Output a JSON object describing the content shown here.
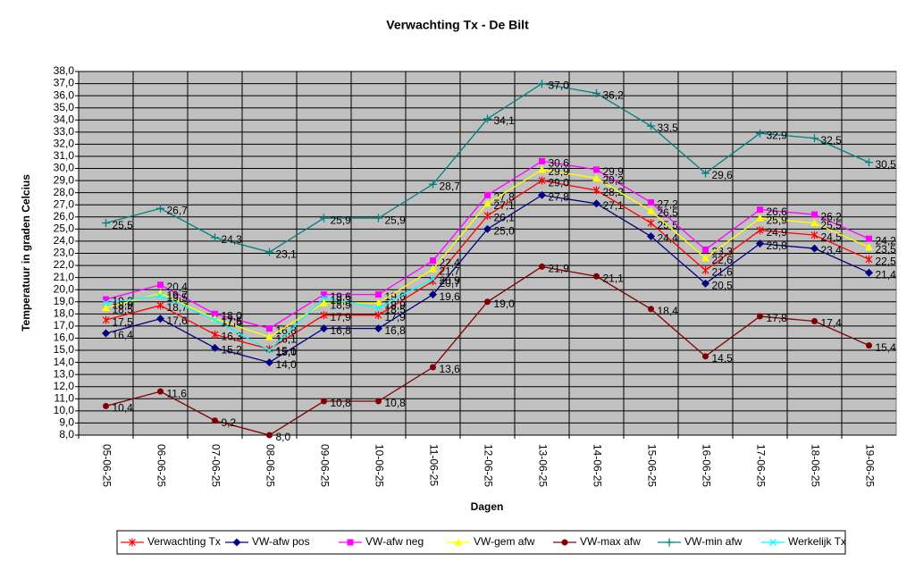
{
  "chart_data": {
    "type": "line",
    "title": "Verwachting Tx - De Bilt",
    "x_label": "Dagen",
    "y_label": "Temperatuur in graden Celcius",
    "categories": [
      "05-06-25",
      "06-06-25",
      "07-06-25",
      "08-06-25",
      "09-06-25",
      "10-06-25",
      "11-06-25",
      "12-06-25",
      "13-06-25",
      "14-06-25",
      "15-06-25",
      "16-06-25",
      "17-06-25",
      "18-06-25",
      "19-06-25"
    ],
    "ylim": [
      8,
      38
    ],
    "yticks": [
      {
        "value": 8,
        "label": "8,0"
      },
      {
        "value": 9,
        "label": "9,0"
      },
      {
        "value": 10,
        "label": "10,0"
      },
      {
        "value": 11,
        "label": "11,0"
      },
      {
        "value": 12,
        "label": "12,0"
      },
      {
        "value": 13,
        "label": "13,0"
      },
      {
        "value": 14,
        "label": "14,0"
      },
      {
        "value": 15,
        "label": "15,0"
      },
      {
        "value": 16,
        "label": "16,0"
      },
      {
        "value": 17,
        "label": "17,0"
      },
      {
        "value": 18,
        "label": "18,0"
      },
      {
        "value": 19,
        "label": "19,0"
      },
      {
        "value": 20,
        "label": "20,0"
      },
      {
        "value": 21,
        "label": "21,0"
      },
      {
        "value": 22,
        "label": "22,0"
      },
      {
        "value": 23,
        "label": "23,0"
      },
      {
        "value": 24,
        "label": "24,0"
      },
      {
        "value": 25,
        "label": "25,0"
      },
      {
        "value": 26,
        "label": "26,0"
      },
      {
        "value": 27,
        "label": "27,0"
      },
      {
        "value": 28,
        "label": "28,0"
      },
      {
        "value": 29,
        "label": "29,0"
      },
      {
        "value": 30,
        "label": "30,0"
      },
      {
        "value": 31,
        "label": "31,0"
      },
      {
        "value": 32,
        "label": "32,0"
      },
      {
        "value": 33,
        "label": "33,0"
      },
      {
        "value": 34,
        "label": "34,0"
      },
      {
        "value": 35,
        "label": "35,0"
      },
      {
        "value": 36,
        "label": "36,0"
      },
      {
        "value": 37,
        "label": "37,0"
      },
      {
        "value": 38,
        "label": "38,0"
      }
    ],
    "grid": true,
    "legend": "bottom",
    "series": [
      {
        "name": "Verwachting Tx",
        "color": "#ff0000",
        "marker": "star",
        "values": [
          17.5,
          18.7,
          16.3,
          15.1,
          17.9,
          17.9,
          20.7,
          26.1,
          29.0,
          28.2,
          25.5,
          21.6,
          24.9,
          24.5,
          22.5
        ],
        "value_labels": [
          "17,5",
          "18,7",
          "16,3",
          "15,1",
          "17,9",
          "17,9",
          "20,7",
          "26,1",
          "29,0",
          "28,2",
          "25,5",
          "21,6",
          "24,9",
          "24,5",
          "22,5"
        ]
      },
      {
        "name": "VW-afw pos",
        "color": "#000080",
        "marker": "diamond",
        "values": [
          16.4,
          17.6,
          15.2,
          14.0,
          16.8,
          16.8,
          19.6,
          25.0,
          27.8,
          27.1,
          24.4,
          20.5,
          23.8,
          23.4,
          21.4
        ],
        "value_labels": [
          "16,4",
          "17,6",
          "15,2",
          "14,0",
          "16,8",
          "16,8",
          "19,6",
          "25,0",
          "27,8",
          "27,1",
          "24,4",
          "20,5",
          "23,8",
          "23,4",
          "21,4"
        ]
      },
      {
        "name": "VW-afw neg",
        "color": "#ff00ff",
        "marker": "square",
        "values": [
          19.2,
          20.4,
          18.0,
          16.8,
          19.6,
          19.6,
          22.4,
          27.8,
          30.6,
          29.9,
          27.2,
          23.3,
          26.6,
          26.2,
          24.2
        ],
        "value_labels": [
          "19,2",
          "20,4",
          "18,0",
          "16,8",
          "19,6",
          "19,6",
          "22,4",
          "27,8",
          "30,6",
          "29,9",
          "27,2",
          "23,3",
          "26,6",
          "26,2",
          "24,2"
        ]
      },
      {
        "name": "VW-gem afw",
        "color": "#ffff00",
        "marker": "triangle",
        "values": [
          18.5,
          19.7,
          17.6,
          16.1,
          18.9,
          18.9,
          21.7,
          27.1,
          29.9,
          29.2,
          26.5,
          22.6,
          25.9,
          25.5,
          23.5
        ],
        "value_labels": [
          "18,5",
          "19,7",
          "17,6",
          "16,1",
          "18,9",
          "18,9",
          "21,7",
          "27,1",
          "29,9",
          "29,2",
          "26,5",
          "22,6",
          "25,9",
          "25,5",
          "23,5"
        ]
      },
      {
        "name": "VW-max afw",
        "color": "#800000",
        "marker": "circle",
        "values": [
          10.4,
          11.6,
          9.2,
          8.0,
          10.8,
          10.8,
          13.6,
          19.0,
          21.9,
          21.1,
          18.4,
          14.5,
          17.8,
          17.4,
          15.4
        ],
        "value_labels": [
          "10,4",
          "11,6",
          "9,2",
          "8,0",
          "10,8",
          "10,8",
          "13,6",
          "19,0",
          "21,9",
          "21,1",
          "18,4",
          "14,5",
          "17,8",
          "17,4",
          "15,4"
        ]
      },
      {
        "name": "VW-min afw",
        "color": "#008080",
        "marker": "plus",
        "values": [
          25.5,
          26.7,
          24.3,
          23.1,
          25.9,
          25.9,
          28.7,
          34.1,
          37.0,
          36.2,
          33.5,
          29.6,
          32.9,
          32.5,
          30.5
        ],
        "value_labels": [
          "25,5",
          "26,7",
          "24,3",
          "23,1",
          "25,9",
          "25,9",
          "28,7",
          "34,1",
          "37,0",
          "36,2",
          "33,5",
          "29,6",
          "32,9",
          "32,5",
          "30,5"
        ]
      },
      {
        "name": "Werkelijk Tx",
        "color": "#00ffff",
        "marker": "x",
        "values": [
          18.9,
          19.5,
          17.5,
          15.0,
          19.3,
          18.5,
          20.9,
          null,
          null,
          null,
          null,
          null,
          null,
          null,
          null
        ],
        "value_labels": [
          "18,9",
          "19,5",
          "17,5",
          "15,0",
          "19,3",
          "18,5",
          "20,9",
          null,
          null,
          null,
          null,
          null,
          null,
          null,
          null
        ]
      }
    ]
  }
}
